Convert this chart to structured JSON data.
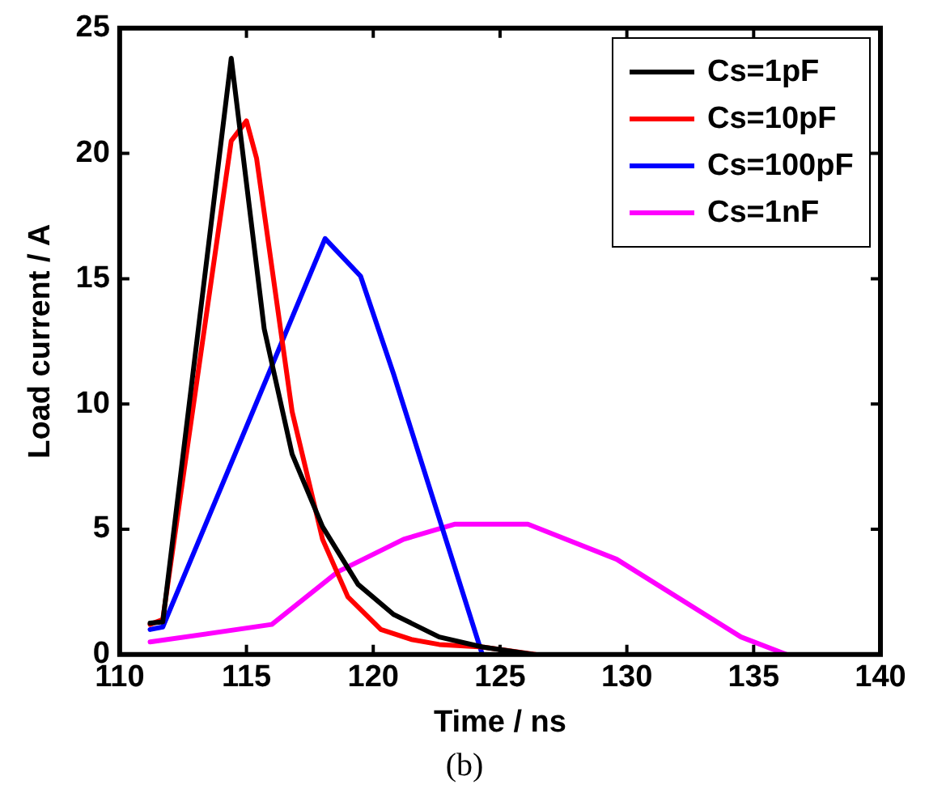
{
  "chart_data": {
    "type": "line",
    "xlabel": "Time / ns",
    "ylabel": "Load current / A",
    "annotations": [
      "(b)"
    ],
    "xlim": [
      110,
      140
    ],
    "xticks": [
      110,
      115,
      120,
      125,
      130,
      135,
      140
    ],
    "ylim": [
      0,
      25
    ],
    "yticks": [
      0,
      5,
      10,
      15,
      20,
      25
    ],
    "grid": false,
    "legend": "top right",
    "marker": "none",
    "line_style": "solid",
    "series": [
      {
        "name": "Cs=1pF",
        "color": "#000000",
        "x": [
          111.2,
          111.7,
          114.4,
          115.7,
          116.8,
          118.0,
          119.4,
          120.8,
          122.6,
          124.3,
          126.3
        ],
        "values": [
          1.25,
          1.3,
          23.8,
          13.0,
          8.0,
          5.1,
          2.8,
          1.6,
          0.7,
          0.3,
          0
        ]
      },
      {
        "name": "Cs=10pF",
        "color": "#ff0000",
        "x": [
          111.2,
          111.7,
          114.4,
          115.0,
          115.4,
          116.8,
          118.0,
          119.0,
          120.3,
          121.5,
          122.6,
          124.3,
          126.4
        ],
        "values": [
          1.2,
          1.4,
          20.5,
          21.3,
          19.8,
          9.7,
          4.6,
          2.3,
          1.0,
          0.6,
          0.4,
          0.3,
          0
        ]
      },
      {
        "name": "Cs=100pF",
        "color": "#0000ff",
        "x": [
          111.2,
          111.7,
          118.1,
          119.5,
          120.8,
          124.3
        ],
        "values": [
          1.0,
          1.1,
          16.6,
          15.1,
          11.2,
          0
        ]
      },
      {
        "name": "Cs=1nF",
        "color": "#ff00ff",
        "x": [
          111.2,
          116.0,
          118.6,
          121.2,
          123.2,
          126.1,
          129.6,
          134.5,
          136.3
        ],
        "values": [
          0.5,
          1.2,
          3.3,
          4.6,
          5.2,
          5.2,
          3.8,
          0.7,
          0
        ]
      }
    ]
  }
}
